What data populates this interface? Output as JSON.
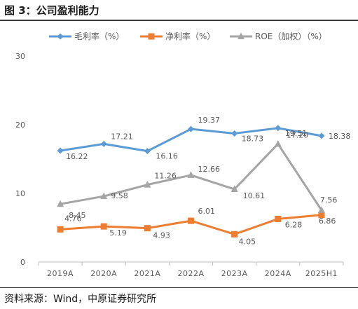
{
  "figure": {
    "title": "图 3：公司盈利能力",
    "source": "资料来源：Wind，中原证券研究所"
  },
  "chart_data": {
    "type": "line",
    "categories": [
      "2019A",
      "2020A",
      "2021A",
      "2022A",
      "2023A",
      "2024A",
      "2025H1"
    ],
    "ylim": [
      0,
      30
    ],
    "yticks": [
      0,
      10,
      20,
      30
    ],
    "grid": false,
    "legend_position": "top",
    "series": [
      {
        "name": "毛利率（%）",
        "color": "#5b9bd5",
        "marker": "diamond",
        "values": [
          16.22,
          17.21,
          16.16,
          19.37,
          18.73,
          19.51,
          18.38
        ],
        "labels": [
          "16.22",
          "17.21",
          "16.16",
          "19.37",
          "18.73",
          "19.51",
          "18.38"
        ]
      },
      {
        "name": "净利率（%）",
        "color": "#ed7d31",
        "marker": "square",
        "values": [
          4.76,
          5.19,
          4.93,
          6.01,
          4.05,
          6.28,
          6.86
        ],
        "labels": [
          "4.76",
          "5.19",
          "4.93",
          "6.01",
          "4.05",
          "6.28",
          "6.86"
        ]
      },
      {
        "name": "ROE（加权）（%）",
        "color": "#a5a5a5",
        "marker": "triangle",
        "values": [
          8.45,
          9.58,
          11.26,
          12.66,
          10.61,
          17.2,
          7.56
        ],
        "labels": [
          "8.45",
          "9.58",
          "11.26",
          "12.66",
          "10.61",
          "17.20",
          "7.56"
        ]
      }
    ]
  }
}
